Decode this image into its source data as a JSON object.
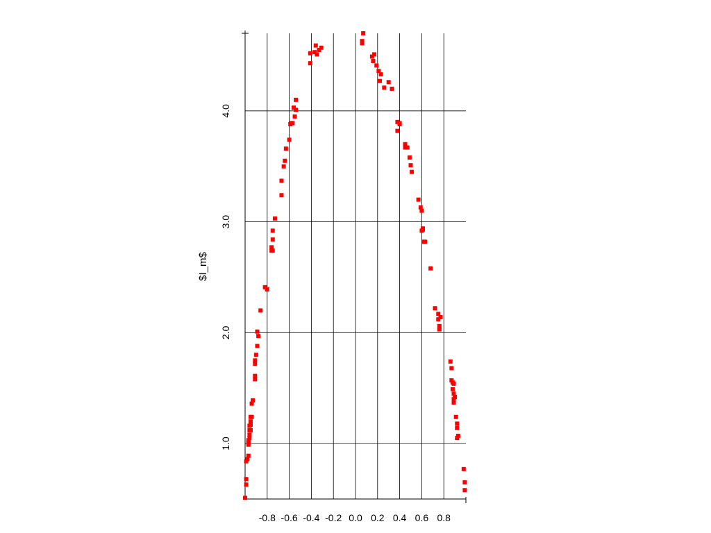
{
  "chart_data": {
    "type": "scatter",
    "title": "",
    "xlabel": "",
    "ylabel": "$I_m$",
    "xlim": [
      -1.0,
      1.0
    ],
    "ylim": [
      0.5,
      4.7
    ],
    "x_ticks": [
      -0.8,
      -0.6,
      -0.4,
      -0.2,
      0.0,
      0.2,
      0.4,
      0.6,
      0.8
    ],
    "x_tick_labels": [
      "-0.8",
      "-0.6",
      "-0.4",
      "-0.2",
      "0.0",
      "0.2",
      "0.4",
      "0.6",
      "0.8"
    ],
    "y_ticks": [
      1.0,
      2.0,
      3.0,
      4.0
    ],
    "y_tick_labels": [
      "1.0",
      "2.0",
      "3.0",
      "4.0"
    ],
    "grid": true,
    "legend": "none",
    "marker_color": "#ff0000",
    "series": [
      {
        "points": [
          [
            -1.0,
            0.51
          ],
          [
            -0.99,
            0.63
          ],
          [
            -0.99,
            0.68
          ],
          [
            -0.99,
            0.84
          ],
          [
            -0.98,
            0.86
          ],
          [
            -0.97,
            0.89
          ],
          [
            -0.97,
            0.99
          ],
          [
            -0.97,
            1.01
          ],
          [
            -0.97,
            1.03
          ],
          [
            -0.96,
            1.05
          ],
          [
            -0.96,
            1.08
          ],
          [
            -0.96,
            1.12
          ],
          [
            -0.96,
            1.16
          ],
          [
            -0.95,
            1.12
          ],
          [
            -0.95,
            1.17
          ],
          [
            -0.95,
            1.2
          ],
          [
            -0.95,
            1.24
          ],
          [
            -0.94,
            1.24
          ],
          [
            -0.94,
            1.36
          ],
          [
            -0.93,
            1.39
          ],
          [
            -0.91,
            1.58
          ],
          [
            -0.91,
            1.61
          ],
          [
            -0.91,
            1.72
          ],
          [
            -0.91,
            1.75
          ],
          [
            -0.9,
            1.8
          ],
          [
            -0.89,
            1.88
          ],
          [
            -0.89,
            2.01
          ],
          [
            -0.88,
            1.97
          ],
          [
            -0.86,
            2.2
          ],
          [
            -0.82,
            2.41
          ],
          [
            -0.8,
            2.39
          ],
          [
            -0.76,
            2.74
          ],
          [
            -0.76,
            2.77
          ],
          [
            -0.75,
            2.74
          ],
          [
            -0.75,
            2.84
          ],
          [
            -0.75,
            2.92
          ],
          [
            -0.73,
            3.03
          ],
          [
            -0.67,
            3.24
          ],
          [
            -0.67,
            3.37
          ],
          [
            -0.65,
            3.5
          ],
          [
            -0.64,
            3.55
          ],
          [
            -0.63,
            3.66
          ],
          [
            -0.6,
            3.74
          ],
          [
            -0.59,
            3.88
          ],
          [
            -0.58,
            3.89
          ],
          [
            -0.57,
            3.89
          ],
          [
            -0.56,
            4.03
          ],
          [
            -0.55,
            3.95
          ],
          [
            -0.54,
            4.01
          ],
          [
            -0.54,
            4.1
          ],
          [
            -0.41,
            4.43
          ],
          [
            -0.41,
            4.52
          ],
          [
            -0.37,
            4.53
          ],
          [
            -0.36,
            4.59
          ],
          [
            -0.35,
            4.51
          ],
          [
            -0.33,
            4.55
          ],
          [
            -0.31,
            4.57
          ],
          [
            0.06,
            4.61
          ],
          [
            0.06,
            4.63
          ],
          [
            0.07,
            4.7
          ],
          [
            0.15,
            4.49
          ],
          [
            0.16,
            4.45
          ],
          [
            0.17,
            4.51
          ],
          [
            0.19,
            4.41
          ],
          [
            0.21,
            4.36
          ],
          [
            0.22,
            4.27
          ],
          [
            0.23,
            4.33
          ],
          [
            0.26,
            4.21
          ],
          [
            0.3,
            4.26
          ],
          [
            0.33,
            4.2
          ],
          [
            0.38,
            3.82
          ],
          [
            0.38,
            3.9
          ],
          [
            0.4,
            3.88
          ],
          [
            0.4,
            3.89
          ],
          [
            0.45,
            3.7
          ],
          [
            0.45,
            3.67
          ],
          [
            0.47,
            3.67
          ],
          [
            0.49,
            3.58
          ],
          [
            0.5,
            3.51
          ],
          [
            0.51,
            3.45
          ],
          [
            0.57,
            3.2
          ],
          [
            0.59,
            3.13
          ],
          [
            0.6,
            3.1
          ],
          [
            0.6,
            2.92
          ],
          [
            0.61,
            2.93
          ],
          [
            0.61,
            2.94
          ],
          [
            0.62,
            2.82
          ],
          [
            0.63,
            2.82
          ],
          [
            0.68,
            2.58
          ],
          [
            0.72,
            2.22
          ],
          [
            0.75,
            2.17
          ],
          [
            0.75,
            2.12
          ],
          [
            0.76,
            2.03
          ],
          [
            0.76,
            2.06
          ],
          [
            0.77,
            2.14
          ],
          [
            0.86,
            1.74
          ],
          [
            0.87,
            1.68
          ],
          [
            0.87,
            1.57
          ],
          [
            0.88,
            1.55
          ],
          [
            0.88,
            1.49
          ],
          [
            0.89,
            1.54
          ],
          [
            0.89,
            1.45
          ],
          [
            0.89,
            1.37
          ],
          [
            0.89,
            1.4
          ],
          [
            0.9,
            1.42
          ],
          [
            0.91,
            1.24
          ],
          [
            0.92,
            1.18
          ],
          [
            0.92,
            1.14
          ],
          [
            0.92,
            1.05
          ],
          [
            0.93,
            1.07
          ],
          [
            0.98,
            0.77
          ],
          [
            0.99,
            0.65
          ],
          [
            0.99,
            0.58
          ]
        ]
      }
    ]
  }
}
